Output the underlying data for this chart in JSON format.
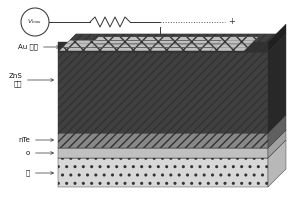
{
  "bg_color": "#ffffff",
  "font_size": 5.0,
  "vbias_text": "V_bias",
  "label_Au": "Au 电极",
  "label_ZnS": "ZnS\n化层",
  "label_nTe": "nTe",
  "label_o": "o",
  "label_di": "底",
  "wire_color": "#333333",
  "circ_color": "#444444",
  "layer_hatch_dark": "////",
  "layer_hatch_dot": "..",
  "electrode_hatch_cross": "xx",
  "electrode_hatch_diag": "////"
}
